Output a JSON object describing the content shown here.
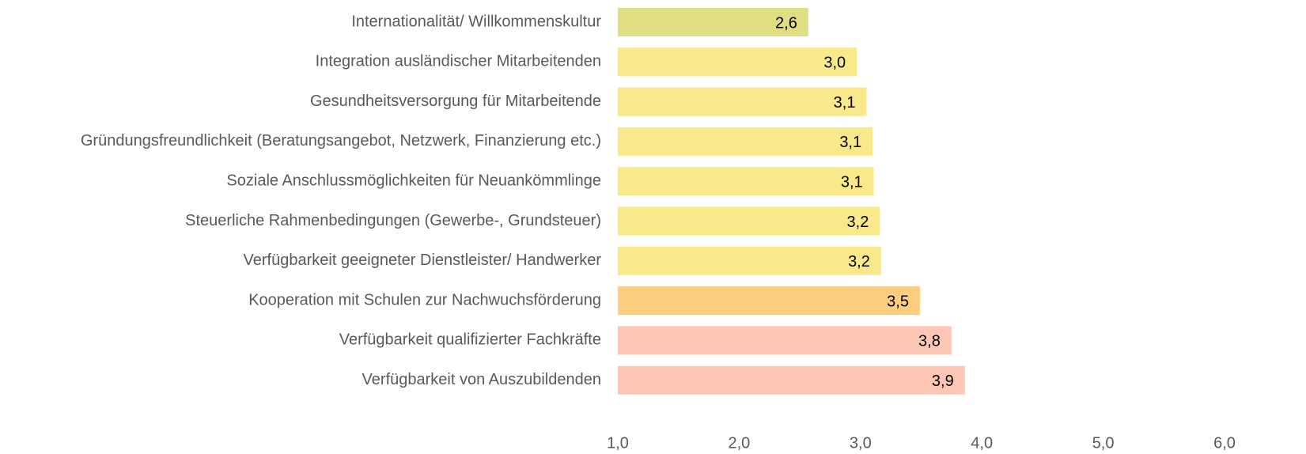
{
  "chart_data": {
    "type": "barh",
    "categories": [
      "Internationalität/ Willkommenskultur",
      "Integration ausländischer Mitarbeitenden",
      "Gesundheitsversorgung für Mitarbeitende",
      "Gründungsfreundlichkeit (Beratungsangebot, Netzwerk, Finanzierung etc.)",
      "Soziale Anschlussmöglichkeiten für Neuankömmlinge",
      "Steuerliche Rahmenbedingungen (Gewerbe-, Grundsteuer)",
      "Verfügbarkeit geeigneter Dienstleister/ Handwerker",
      "Kooperation mit Schulen zur Nachwuchsförderung",
      "Verfügbarkeit qualifizierter Fachkräfte",
      "Verfügbarkeit von Auszubildenden"
    ],
    "values": [
      2.57,
      2.97,
      3.05,
      3.1,
      3.11,
      3.16,
      3.17,
      3.49,
      3.75,
      3.86
    ],
    "value_labels": [
      "2,6",
      "3,0",
      "3,1",
      "3,1",
      "3,1",
      "3,2",
      "3,2",
      "3,5",
      "3,8",
      "3,9"
    ],
    "colors": [
      "#dfdf82",
      "#f9e98a",
      "#f9e98a",
      "#f9e98a",
      "#f9e98a",
      "#f9e98a",
      "#f9e98a",
      "#fdcd80",
      "#fec6b4",
      "#fec6b4"
    ],
    "xlim": [
      1,
      6
    ],
    "xticks": [
      {
        "value": 1,
        "label": "1,0"
      },
      {
        "value": 2,
        "label": "2,0"
      },
      {
        "value": 3,
        "label": "3,0"
      },
      {
        "value": 4,
        "label": "4,0"
      },
      {
        "value": 5,
        "label": "5,0"
      },
      {
        "value": 6,
        "label": "6,0"
      }
    ],
    "grid": false
  }
}
